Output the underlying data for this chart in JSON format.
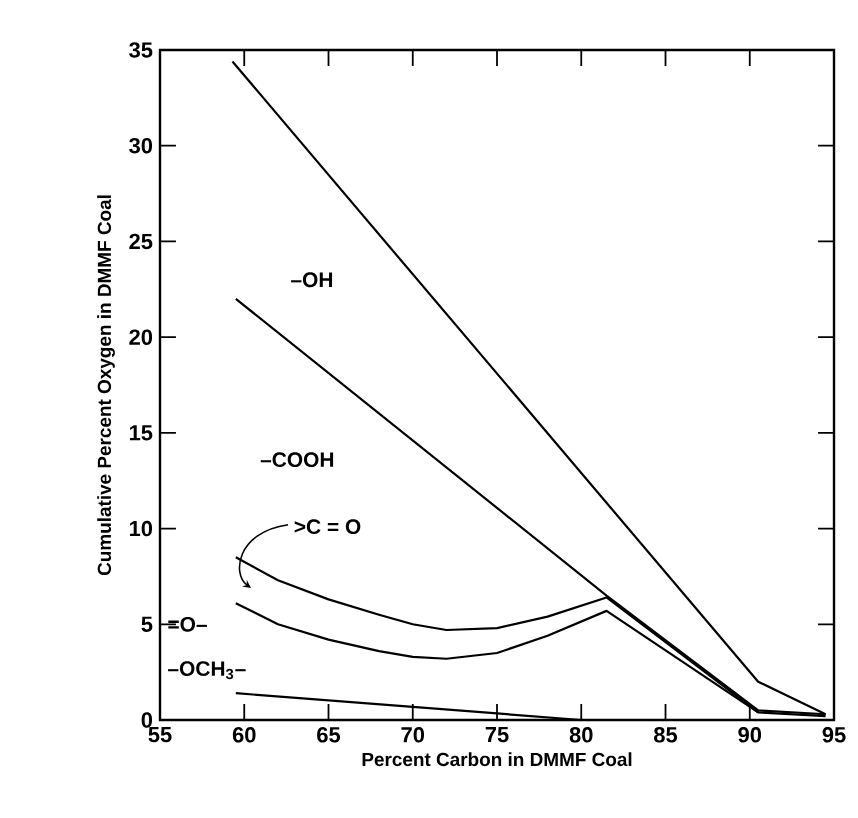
{
  "chart_data": {
    "type": "line",
    "xlabel": "Percent Carbon in DMMF Coal",
    "ylabel": "Cumulative Percent Oxygen in DMMF Coal",
    "xlim": [
      55,
      95
    ],
    "ylim": [
      0,
      35
    ],
    "xticks": [
      55,
      60,
      65,
      70,
      75,
      80,
      85,
      90,
      95
    ],
    "yticks": [
      0,
      5,
      10,
      15,
      20,
      25,
      30,
      35
    ],
    "grid": false,
    "marker": "none",
    "line_style": "solid",
    "series": [
      {
        "color": "#000000",
        "x": [
          59.3,
          90.5,
          94.5
        ],
        "values": [
          34.4,
          2.0,
          0.3
        ]
      },
      {
        "color": "#000000",
        "x": [
          59.5,
          81.5,
          90.5,
          94.5
        ],
        "values": [
          22.0,
          6.5,
          0.5,
          0.3
        ]
      },
      {
        "color": "#000000",
        "x": [
          59.5,
          62,
          65,
          68,
          70,
          72,
          75,
          78,
          81.5,
          90.5
        ],
        "values": [
          8.5,
          7.3,
          6.3,
          5.5,
          5.0,
          4.7,
          4.8,
          5.4,
          6.4,
          0.4
        ]
      },
      {
        "color": "#000000",
        "x": [
          59.5,
          62,
          65,
          68,
          70,
          72,
          75,
          78,
          81.5,
          90.5,
          94.5
        ],
        "values": [
          6.1,
          5.0,
          4.2,
          3.6,
          3.3,
          3.2,
          3.5,
          4.4,
          5.7,
          0.4,
          0.2
        ]
      },
      {
        "color": "#000000",
        "x": [
          59.5,
          80
        ],
        "values": [
          1.4,
          0.0
        ]
      }
    ],
    "annotations": [
      "–OH",
      "–COOH",
      ">C = O",
      "=O–",
      "–OCH$_{3}$–"
    ]
  }
}
